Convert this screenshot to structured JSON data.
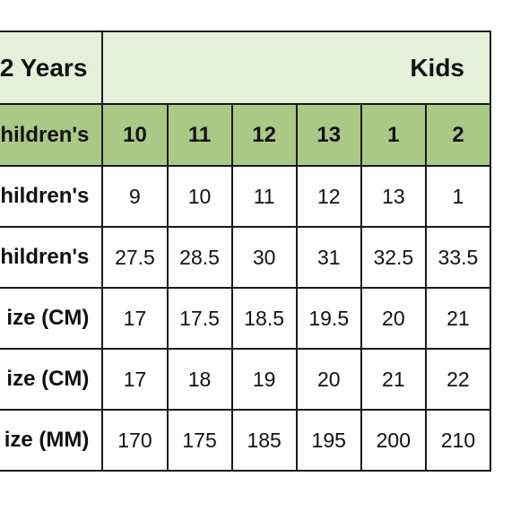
{
  "header": {
    "left_title": "2 Years",
    "group_title": "Kids"
  },
  "size_row": {
    "label": "Children's",
    "values": [
      "10",
      "11",
      "12",
      "13",
      "1",
      "2"
    ]
  },
  "rows": [
    {
      "label": "Children's",
      "values": [
        "9",
        "10",
        "11",
        "12",
        "13",
        "1"
      ]
    },
    {
      "label": "Children's",
      "values": [
        "27.5",
        "28.5",
        "30",
        "31",
        "32.5",
        "33.5"
      ]
    },
    {
      "label": "ize (CM)",
      "values": [
        "17",
        "17.5",
        "18.5",
        "19.5",
        "20",
        "21"
      ]
    },
    {
      "label": "ize (CM)",
      "values": [
        "17",
        "18",
        "19",
        "20",
        "21",
        "22"
      ]
    },
    {
      "label": "ize (MM)",
      "values": [
        "170",
        "175",
        "185",
        "195",
        "200",
        "210"
      ]
    }
  ],
  "colors": {
    "header_bg": "#e6efd9",
    "size_row_bg": "#a9c984",
    "border": "#1a1a1a"
  }
}
